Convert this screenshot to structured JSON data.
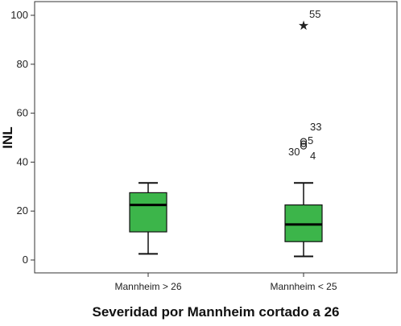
{
  "chart_data": {
    "type": "boxplot",
    "title": "",
    "xlabel": "Severidad por Mannheim cortado a 26",
    "ylabel": "INL",
    "ylim": [
      -5,
      105
    ],
    "yticks": [
      0,
      20,
      40,
      60,
      80,
      100
    ],
    "grid": false,
    "legend": "none",
    "box_color": "#3cb54a",
    "categories": [
      "Mannheim > 26",
      "Mannheim < 25"
    ],
    "boxes": [
      {
        "category": "Mannheim > 26",
        "whisker_low": 2.5,
        "q1": 11.5,
        "median": 22.5,
        "q3": 27.5,
        "whisker_high": 31.5,
        "outliers": []
      },
      {
        "category": "Mannheim < 25",
        "whisker_low": 1.5,
        "q1": 7.5,
        "median": 14.5,
        "q3": 22.5,
        "whisker_high": 31.5,
        "outliers": [
          {
            "label": "30",
            "value": 46.5,
            "marker": "circle"
          },
          {
            "label": "4",
            "value": 47.5,
            "marker": "circle"
          },
          {
            "label": "5",
            "value": 48.5,
            "marker": "circle"
          },
          {
            "label": "33",
            "value": 53,
            "marker": "none"
          },
          {
            "label": "55",
            "value": 96,
            "marker": "star"
          }
        ]
      }
    ]
  }
}
